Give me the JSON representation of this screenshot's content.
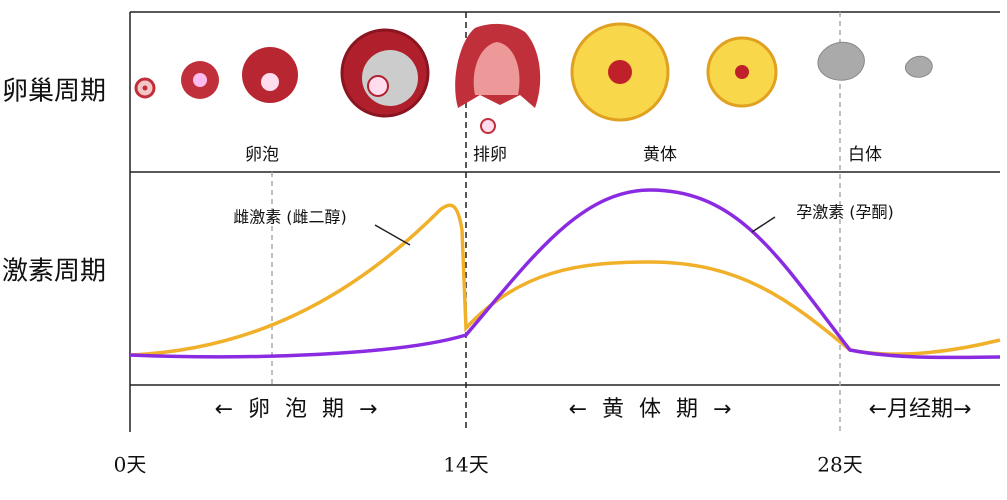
{
  "rows": {
    "ovary": "卵巢周期",
    "hormone": "激素周期"
  },
  "stages": [
    "卵泡",
    "排卵",
    "黄体",
    "白体"
  ],
  "curves": {
    "estrogen": "雌激素 (雌二醇)",
    "progesterone": "孕激素 (孕酮)"
  },
  "phases": [
    "← 卵 泡 期 →",
    "← 黄 体 期 →",
    "←月经期→"
  ],
  "days": [
    "0天",
    "14天",
    "28天"
  ]
}
